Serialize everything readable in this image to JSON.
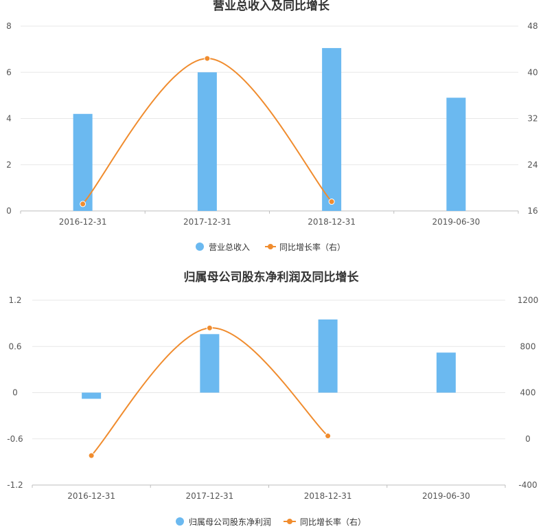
{
  "chart_data": [
    {
      "type": "bar",
      "title": "营业总收入及同比增长",
      "categories": [
        "2016-12-31",
        "2017-12-31",
        "2018-12-31",
        "2019-06-30"
      ],
      "y_left": {
        "ticks": [
          "8",
          "6",
          "4",
          "2",
          "0"
        ],
        "ylim": [
          0,
          8
        ]
      },
      "y_right": {
        "ticks": [
          "48",
          "40",
          "32",
          "24",
          "16"
        ],
        "ylim": [
          16,
          48
        ]
      },
      "grid": true,
      "legend_position": "bottom-center",
      "series": [
        {
          "name": "营业总收入",
          "type": "bar",
          "axis": "left",
          "color": "#6bb9f0",
          "values": [
            4.2,
            6.0,
            7.05,
            4.9
          ]
        },
        {
          "name": "同比增长率（右）",
          "type": "line",
          "axis": "right",
          "color": "#f08c2e",
          "values": [
            17.2,
            42.4,
            17.6,
            null
          ]
        }
      ]
    },
    {
      "type": "bar",
      "title": "归属母公司股东净利润及同比增长",
      "categories": [
        "2016-12-31",
        "2017-12-31",
        "2018-12-31",
        "2019-06-30"
      ],
      "y_left": {
        "ticks": [
          "1.2",
          "0.6",
          "0",
          "-0.6",
          "-1.2"
        ],
        "ylim": [
          -1.2,
          1.2
        ]
      },
      "y_right": {
        "ticks": [
          "1200",
          "800",
          "400",
          "0",
          "-400"
        ],
        "ylim": [
          -400,
          1200
        ]
      },
      "grid": true,
      "legend_position": "bottom-center",
      "series": [
        {
          "name": "归属母公司股东净利润",
          "type": "bar",
          "axis": "left",
          "color": "#6bb9f0",
          "values": [
            -0.08,
            0.76,
            0.95,
            0.52
          ]
        },
        {
          "name": "同比增长率（右）",
          "type": "line",
          "axis": "right",
          "color": "#f08c2e",
          "values": [
            -145,
            960,
            25,
            null
          ]
        }
      ]
    }
  ]
}
